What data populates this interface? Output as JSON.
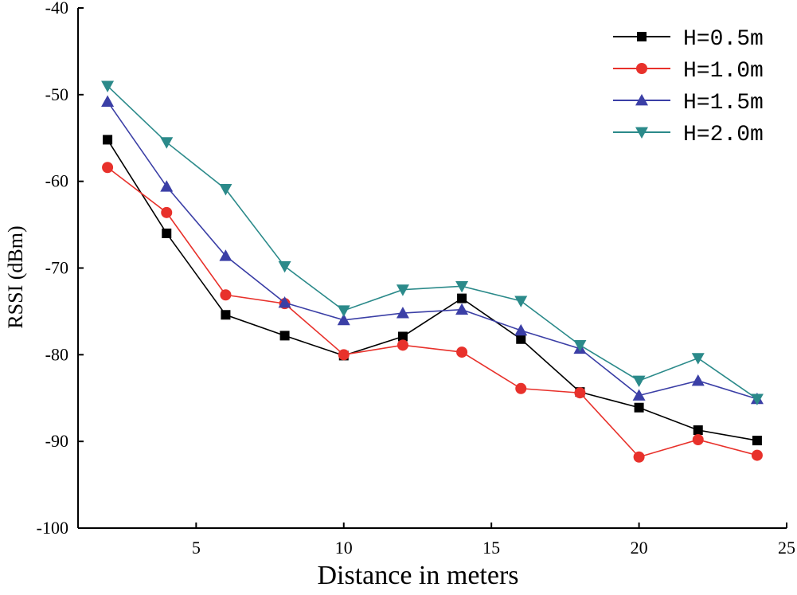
{
  "chart_data": {
    "type": "line",
    "title": "",
    "xlabel": "Distance in meters",
    "ylabel": "RSSI (dBm)",
    "xlim": [
      1,
      25
    ],
    "ylim": [
      -100,
      -40
    ],
    "x_ticks": [
      5,
      10,
      15,
      20,
      25
    ],
    "y_ticks": [
      -40,
      -50,
      -60,
      -70,
      -80,
      -90,
      -100
    ],
    "grid": false,
    "legend_position": "top-right",
    "x": [
      2,
      4,
      6,
      8,
      10,
      12,
      14,
      16,
      18,
      20,
      22,
      24
    ],
    "series": [
      {
        "name": "H=0.5m",
        "color": "#000000",
        "marker": "square",
        "values": [
          -55.2,
          -66.0,
          -75.4,
          -77.8,
          -80.1,
          -77.9,
          -73.5,
          -78.2,
          -84.3,
          -86.1,
          -88.7,
          -89.9
        ]
      },
      {
        "name": "H=1.0m",
        "color": "#e8312b",
        "marker": "circle",
        "values": [
          -58.4,
          -63.6,
          -73.1,
          -74.1,
          -80.0,
          -78.9,
          -79.7,
          -83.9,
          -84.4,
          -91.8,
          -89.8,
          -91.6
        ]
      },
      {
        "name": "H=1.5m",
        "color": "#3b3fa6",
        "marker": "triangle-up",
        "values": [
          -50.8,
          -60.6,
          -68.6,
          -74.0,
          -76.0,
          -75.2,
          -74.8,
          -77.2,
          -79.3,
          -84.7,
          -83.0,
          -85.1
        ]
      },
      {
        "name": "H=2.0m",
        "color": "#2b8a8a",
        "marker": "triangle-down",
        "values": [
          -49.0,
          -55.5,
          -60.9,
          -69.8,
          -74.9,
          -72.5,
          -72.1,
          -73.8,
          -78.9,
          -83.0,
          -80.4,
          -85.1
        ]
      }
    ]
  }
}
